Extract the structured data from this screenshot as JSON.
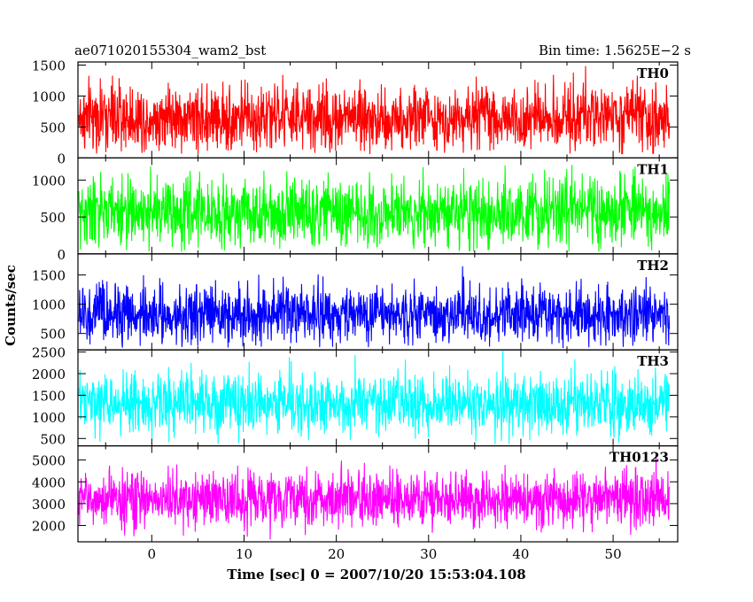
{
  "header": {
    "title": "ae071020155304_wam2_bst",
    "bin_time": "Bin time: 1.5625E−2 s"
  },
  "xlabel": "Time [sec] 0 = 2007/10/20 15:53:04.108",
  "ylabel": "Counts/sec",
  "chart_data": {
    "type": "line",
    "title": "ae071020155304_wam2_bst",
    "subtitle": "Bin time: 1.5625E−2 s",
    "xlabel": "Time [sec] 0 = 2007/10/20 15:53:04.108",
    "ylabel": "Counts/sec",
    "xlim": [
      -8.0,
      57.0
    ],
    "x_range_of_data": [
      -7.9,
      56.1
    ],
    "x_ticks": [
      0,
      10,
      20,
      30,
      40,
      50
    ],
    "panels": [
      {
        "name": "TH0",
        "color": "#ff0000",
        "ylim": [
          0,
          1550
        ],
        "y_ticks": [
          0,
          500,
          1000,
          1500
        ],
        "mean": 650,
        "std": 270,
        "min": 60,
        "max": 1540
      },
      {
        "name": "TH1",
        "color": "#00ff00",
        "ylim": [
          0,
          1300
        ],
        "y_ticks": [
          0,
          500,
          1000
        ],
        "mean": 560,
        "std": 230,
        "min": 30,
        "max": 1280
      },
      {
        "name": "TH2",
        "color": "#0000ff",
        "ylim": [
          220,
          1860
        ],
        "y_ticks": [
          500,
          1000,
          1500
        ],
        "mean": 820,
        "std": 250,
        "min": 250,
        "max": 1850
      },
      {
        "name": "TH3",
        "color": "#00ffff",
        "ylim": [
          330,
          2550
        ],
        "y_ticks": [
          500,
          1000,
          1500,
          2000,
          2500
        ],
        "mean": 1300,
        "std": 360,
        "min": 360,
        "max": 2540
      },
      {
        "name": "TH0123",
        "color": "#ff00ff",
        "ylim": [
          1250,
          5650
        ],
        "y_ticks": [
          2000,
          3000,
          4000,
          5000
        ],
        "mean": 3200,
        "std": 640,
        "min": 1300,
        "max": 5600
      }
    ]
  }
}
